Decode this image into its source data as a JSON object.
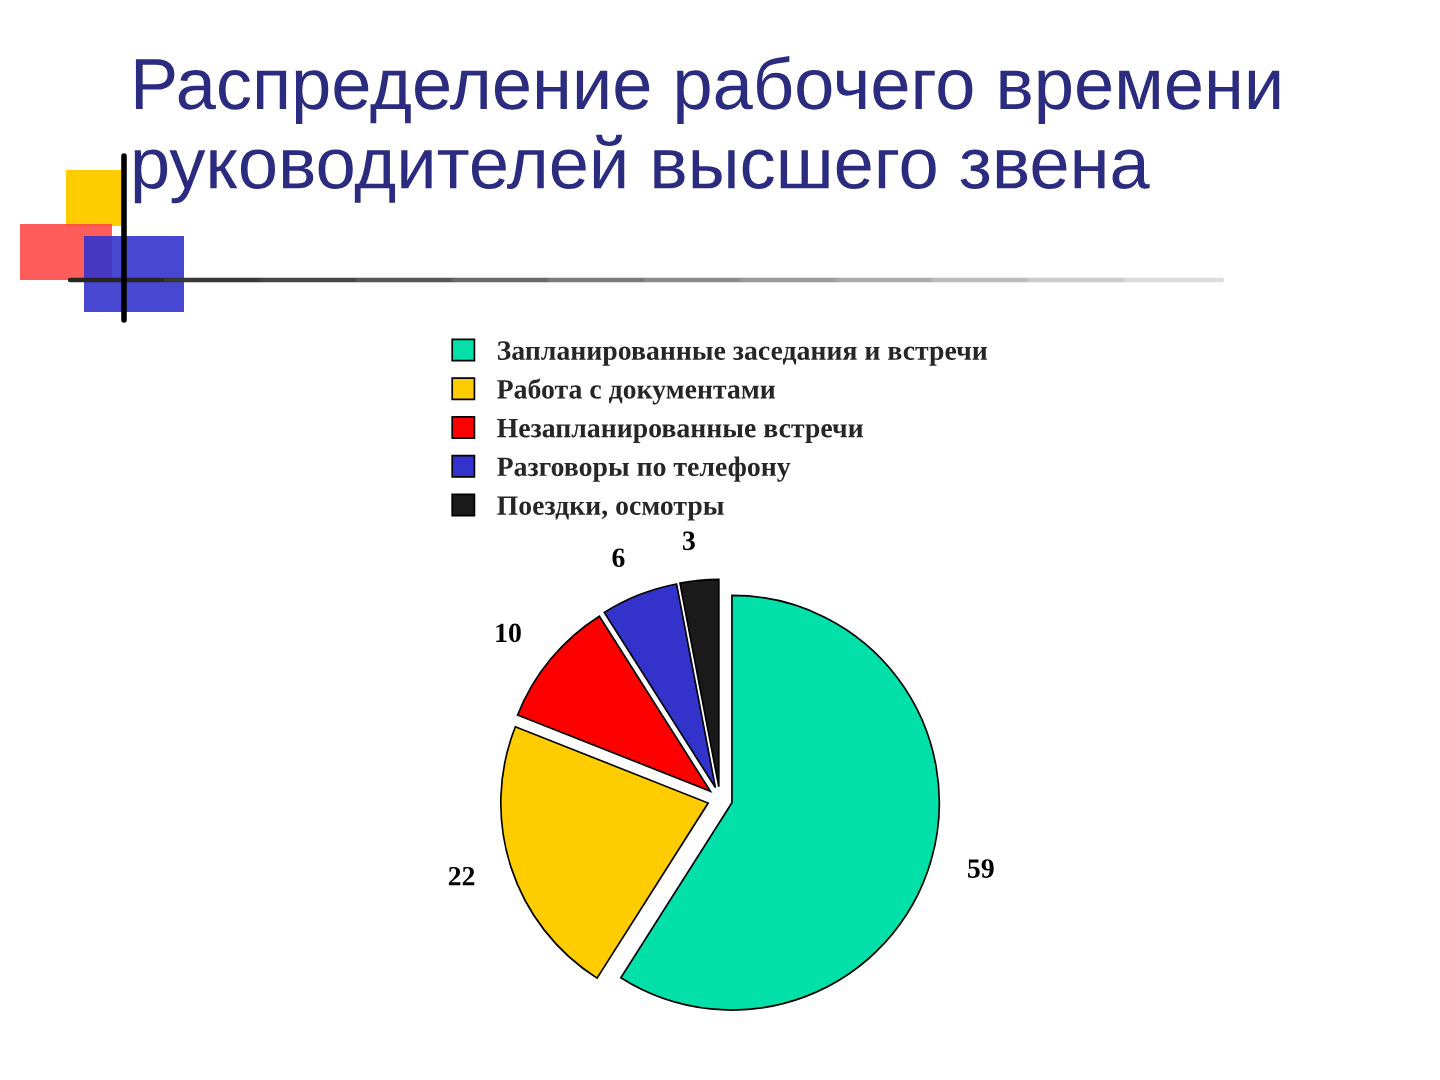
{
  "chart_data": {
    "type": "pie",
    "title": "Распределение рабочего времени руководителей высшего звена",
    "categories": [
      "Запланированные заседания и встречи",
      "Работа с документами",
      "Незапланированные встречи",
      "Разговоры по телефону",
      "Поездки, осмотры"
    ],
    "values": [
      59,
      22,
      10,
      6,
      3
    ],
    "colors": [
      "#00e0a8",
      "#ffcc00",
      "#ff0000",
      "#3333cc",
      "#1a1a1a"
    ],
    "data_labels": true,
    "legend": "top"
  }
}
